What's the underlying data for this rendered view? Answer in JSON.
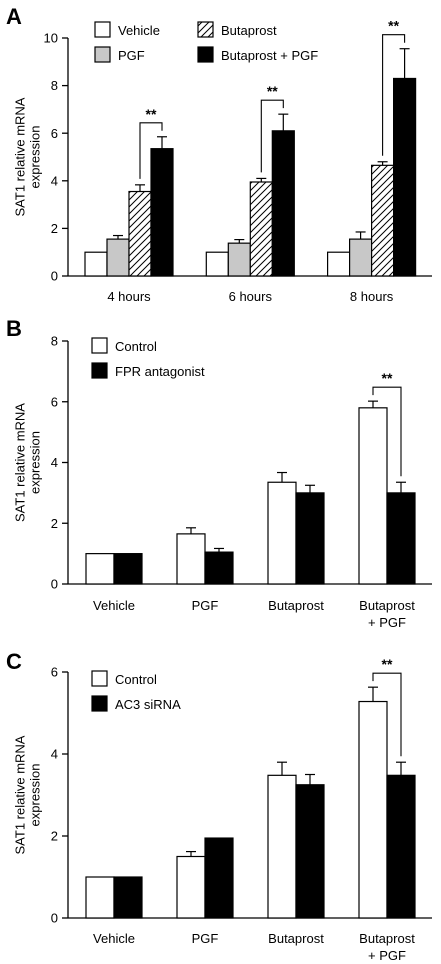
{
  "chart_data": [
    {
      "panel": "A",
      "type": "bar",
      "ylabel": [
        "SAT1 relative mRNA",
        "expression"
      ],
      "ylim": [
        0,
        10
      ],
      "yticks": [
        0,
        2,
        4,
        6,
        8,
        10
      ],
      "categories": [
        [
          "4 hours"
        ],
        [
          "6 hours"
        ],
        [
          "8 hours"
        ]
      ],
      "legend": {
        "placement": "top-left",
        "columns": 2
      },
      "series": [
        {
          "name": "Vehicle",
          "fill": "white",
          "values": [
            1.0,
            1.0,
            1.0
          ],
          "errors": [
            0,
            0,
            0
          ]
        },
        {
          "name": "PGF",
          "fill": "#c8c8c8",
          "values": [
            1.55,
            1.38,
            1.55
          ],
          "errors": [
            0.15,
            0.15,
            0.3
          ]
        },
        {
          "name": "Butaprost",
          "fill": "hatch",
          "values": [
            3.55,
            3.95,
            4.65
          ],
          "errors": [
            0.28,
            0.15,
            0.15
          ]
        },
        {
          "name": "Butaprost + PGF",
          "fill": "black",
          "values": [
            5.35,
            6.1,
            8.3
          ],
          "errors": [
            0.5,
            0.7,
            1.25
          ]
        }
      ],
      "significance": [
        {
          "category": 0,
          "from_series": 2,
          "to_series": 3,
          "label": "**"
        },
        {
          "category": 1,
          "from_series": 2,
          "to_series": 3,
          "label": "**"
        },
        {
          "category": 2,
          "from_series": 2,
          "to_series": 3,
          "label": "**"
        }
      ]
    },
    {
      "panel": "B",
      "type": "bar",
      "ylabel": [
        "SAT1 relative mRNA",
        "expression"
      ],
      "ylim": [
        0,
        8
      ],
      "yticks": [
        0,
        2,
        4,
        6,
        8
      ],
      "categories": [
        [
          "Vehicle"
        ],
        [
          "PGF"
        ],
        [
          "Butaprost"
        ],
        [
          "Butaprost",
          "+ PGF"
        ]
      ],
      "legend": {
        "placement": "top-left",
        "columns": 1
      },
      "series": [
        {
          "name": "Control",
          "fill": "white",
          "values": [
            1.0,
            1.65,
            3.35,
            5.8
          ],
          "errors": [
            0,
            0.2,
            0.32,
            0.22
          ]
        },
        {
          "name": "FPR antagonist",
          "fill": "black",
          "values": [
            1.0,
            1.05,
            3.0,
            3.0
          ],
          "errors": [
            0,
            0.12,
            0.25,
            0.35
          ]
        }
      ],
      "significance": [
        {
          "category": 3,
          "from_series": 0,
          "to_series": 1,
          "label": "**"
        }
      ]
    },
    {
      "panel": "C",
      "type": "bar",
      "ylabel": [
        "SAT1 relative mRNA",
        "expression"
      ],
      "ylim": [
        0,
        6
      ],
      "yticks": [
        0,
        2,
        4,
        6
      ],
      "categories": [
        [
          "Vehicle"
        ],
        [
          "PGF"
        ],
        [
          "Butaprost"
        ],
        [
          "Butaprost",
          "+ PGF"
        ]
      ],
      "legend": {
        "placement": "top-left",
        "columns": 1
      },
      "series": [
        {
          "name": "Control",
          "fill": "white",
          "values": [
            1.0,
            1.5,
            3.48,
            5.28
          ],
          "errors": [
            0,
            0.12,
            0.32,
            0.35
          ]
        },
        {
          "name": "AC3 siRNA",
          "fill": "black",
          "values": [
            1.0,
            1.95,
            3.25,
            3.48
          ],
          "errors": [
            0,
            0,
            0.25,
            0.32
          ]
        }
      ],
      "significance": [
        {
          "category": 3,
          "from_series": 0,
          "to_series": 1,
          "label": "**"
        }
      ]
    }
  ]
}
